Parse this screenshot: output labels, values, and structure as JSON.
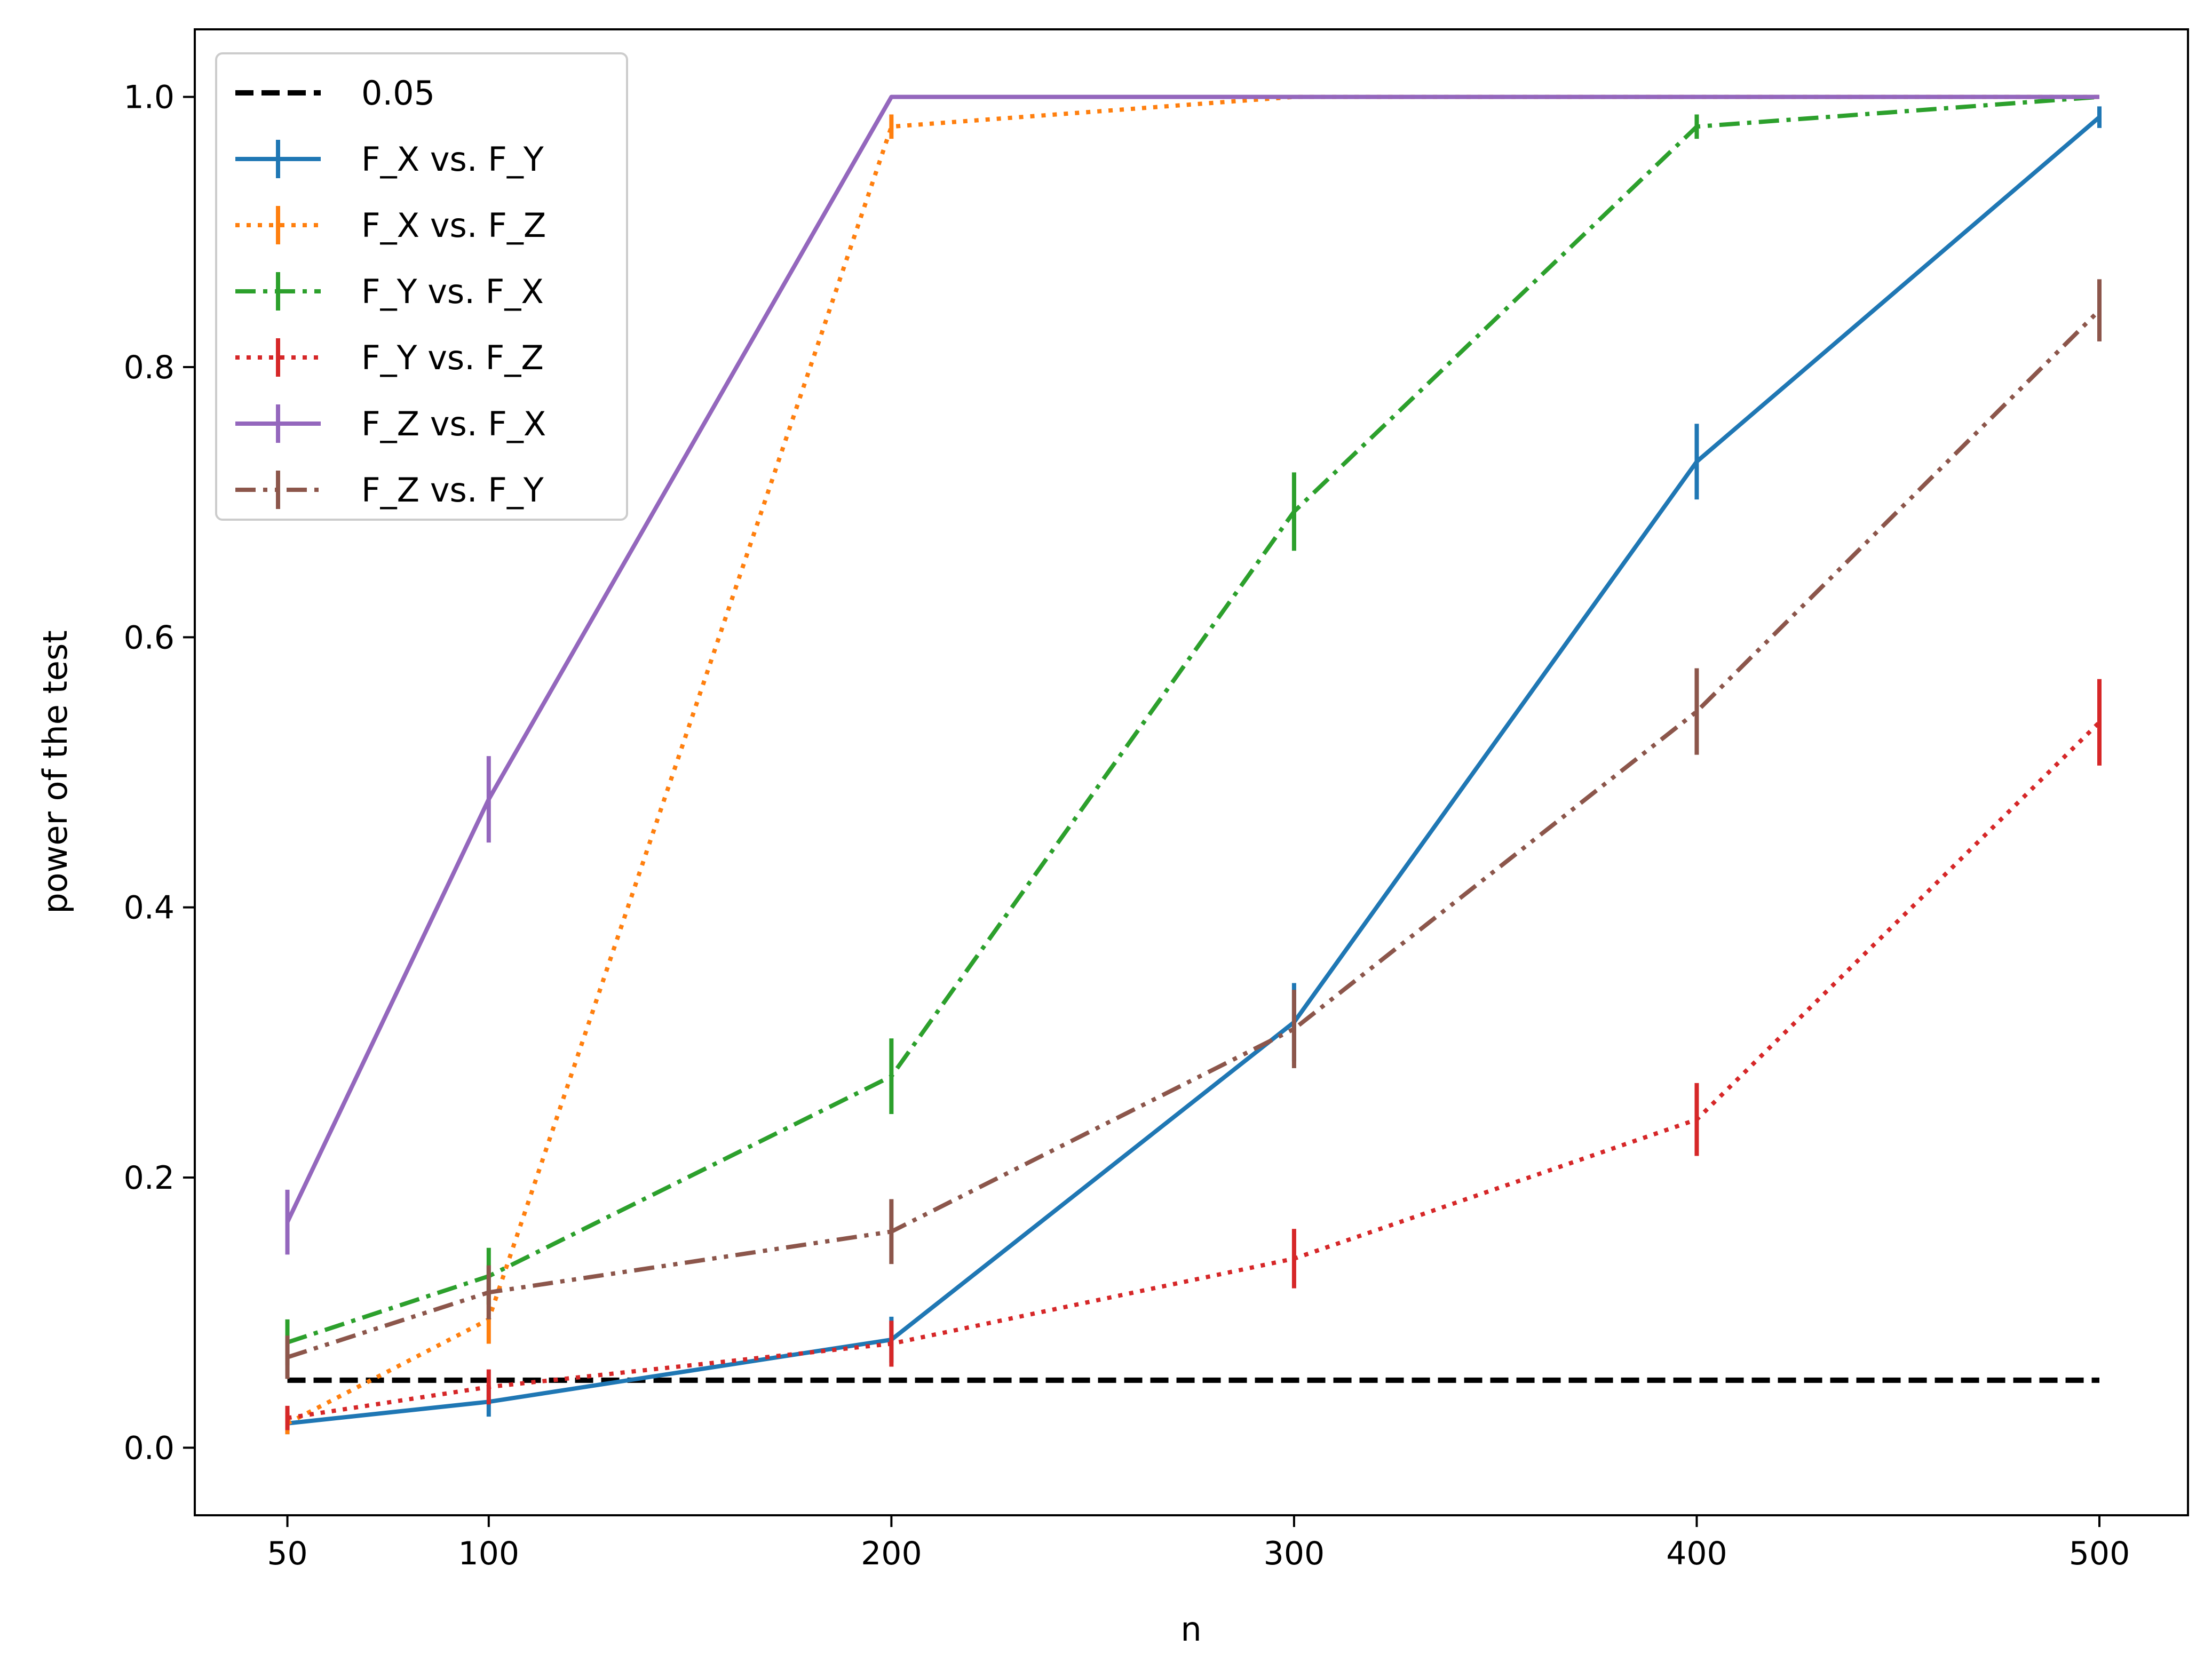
{
  "chart_data": {
    "type": "line",
    "title": "",
    "xlabel": "n",
    "ylabel": "power of the test",
    "x": [
      50,
      100,
      200,
      300,
      400,
      500
    ],
    "xticks": [
      50,
      100,
      200,
      300,
      400,
      500
    ],
    "yticks": [
      0.0,
      0.2,
      0.4,
      0.6,
      0.8,
      1.0
    ],
    "xtick_labels": [
      "50",
      "100",
      "200",
      "300",
      "400",
      500
    ],
    "ytick_labels": [
      "0.0",
      "0.2",
      "0.4",
      "0.6",
      "0.8",
      "1.0"
    ],
    "xlim": [
      27,
      522
    ],
    "ylim": [
      -0.05,
      1.05
    ],
    "grid": false,
    "legend_position": "top-left",
    "reference_line": {
      "name": "0.05",
      "value": 0.05,
      "x_range": [
        50,
        500
      ],
      "color": "#000000",
      "style": "dashed"
    },
    "series": [
      {
        "name": "F_X vs. F_Y",
        "color": "#1f77b4",
        "style": "solid",
        "values": [
          0.018,
          0.034,
          0.08,
          0.315,
          0.73,
          0.985
        ],
        "errors": [
          0.008,
          0.011,
          0.017,
          0.029,
          0.028,
          0.008
        ]
      },
      {
        "name": "F_X vs. F_Z",
        "color": "#ff7f0e",
        "style": "dotted",
        "values": [
          0.018,
          0.095,
          0.978,
          1.0,
          1.0,
          1.0
        ],
        "errors": [
          0.008,
          0.018,
          0.009,
          0.0,
          0.0,
          0.0
        ]
      },
      {
        "name": "F_Y vs. F_X",
        "color": "#2ca02c",
        "style": "dashdot",
        "values": [
          0.078,
          0.127,
          0.275,
          0.693,
          0.978,
          1.0
        ],
        "errors": [
          0.017,
          0.021,
          0.028,
          0.029,
          0.009,
          0.0
        ]
      },
      {
        "name": "F_Y vs. F_Z",
        "color": "#d62728",
        "style": "dotted",
        "values": [
          0.022,
          0.045,
          0.077,
          0.14,
          0.243,
          0.537
        ],
        "errors": [
          0.009,
          0.013,
          0.017,
          0.022,
          0.027,
          0.032
        ]
      },
      {
        "name": "F_Z vs. F_X",
        "color": "#9467bd",
        "style": "solid",
        "values": [
          0.167,
          0.48,
          1.0,
          1.0,
          1.0,
          1.0
        ],
        "errors": [
          0.024,
          0.032,
          0.0,
          0.0,
          0.0,
          0.0
        ]
      },
      {
        "name": "F_Z vs. F_Y",
        "color": "#8c564b",
        "style": "dashdotdot",
        "values": [
          0.067,
          0.115,
          0.16,
          0.31,
          0.545,
          0.842
        ],
        "errors": [
          0.016,
          0.02,
          0.024,
          0.029,
          0.032,
          0.023
        ]
      }
    ]
  }
}
